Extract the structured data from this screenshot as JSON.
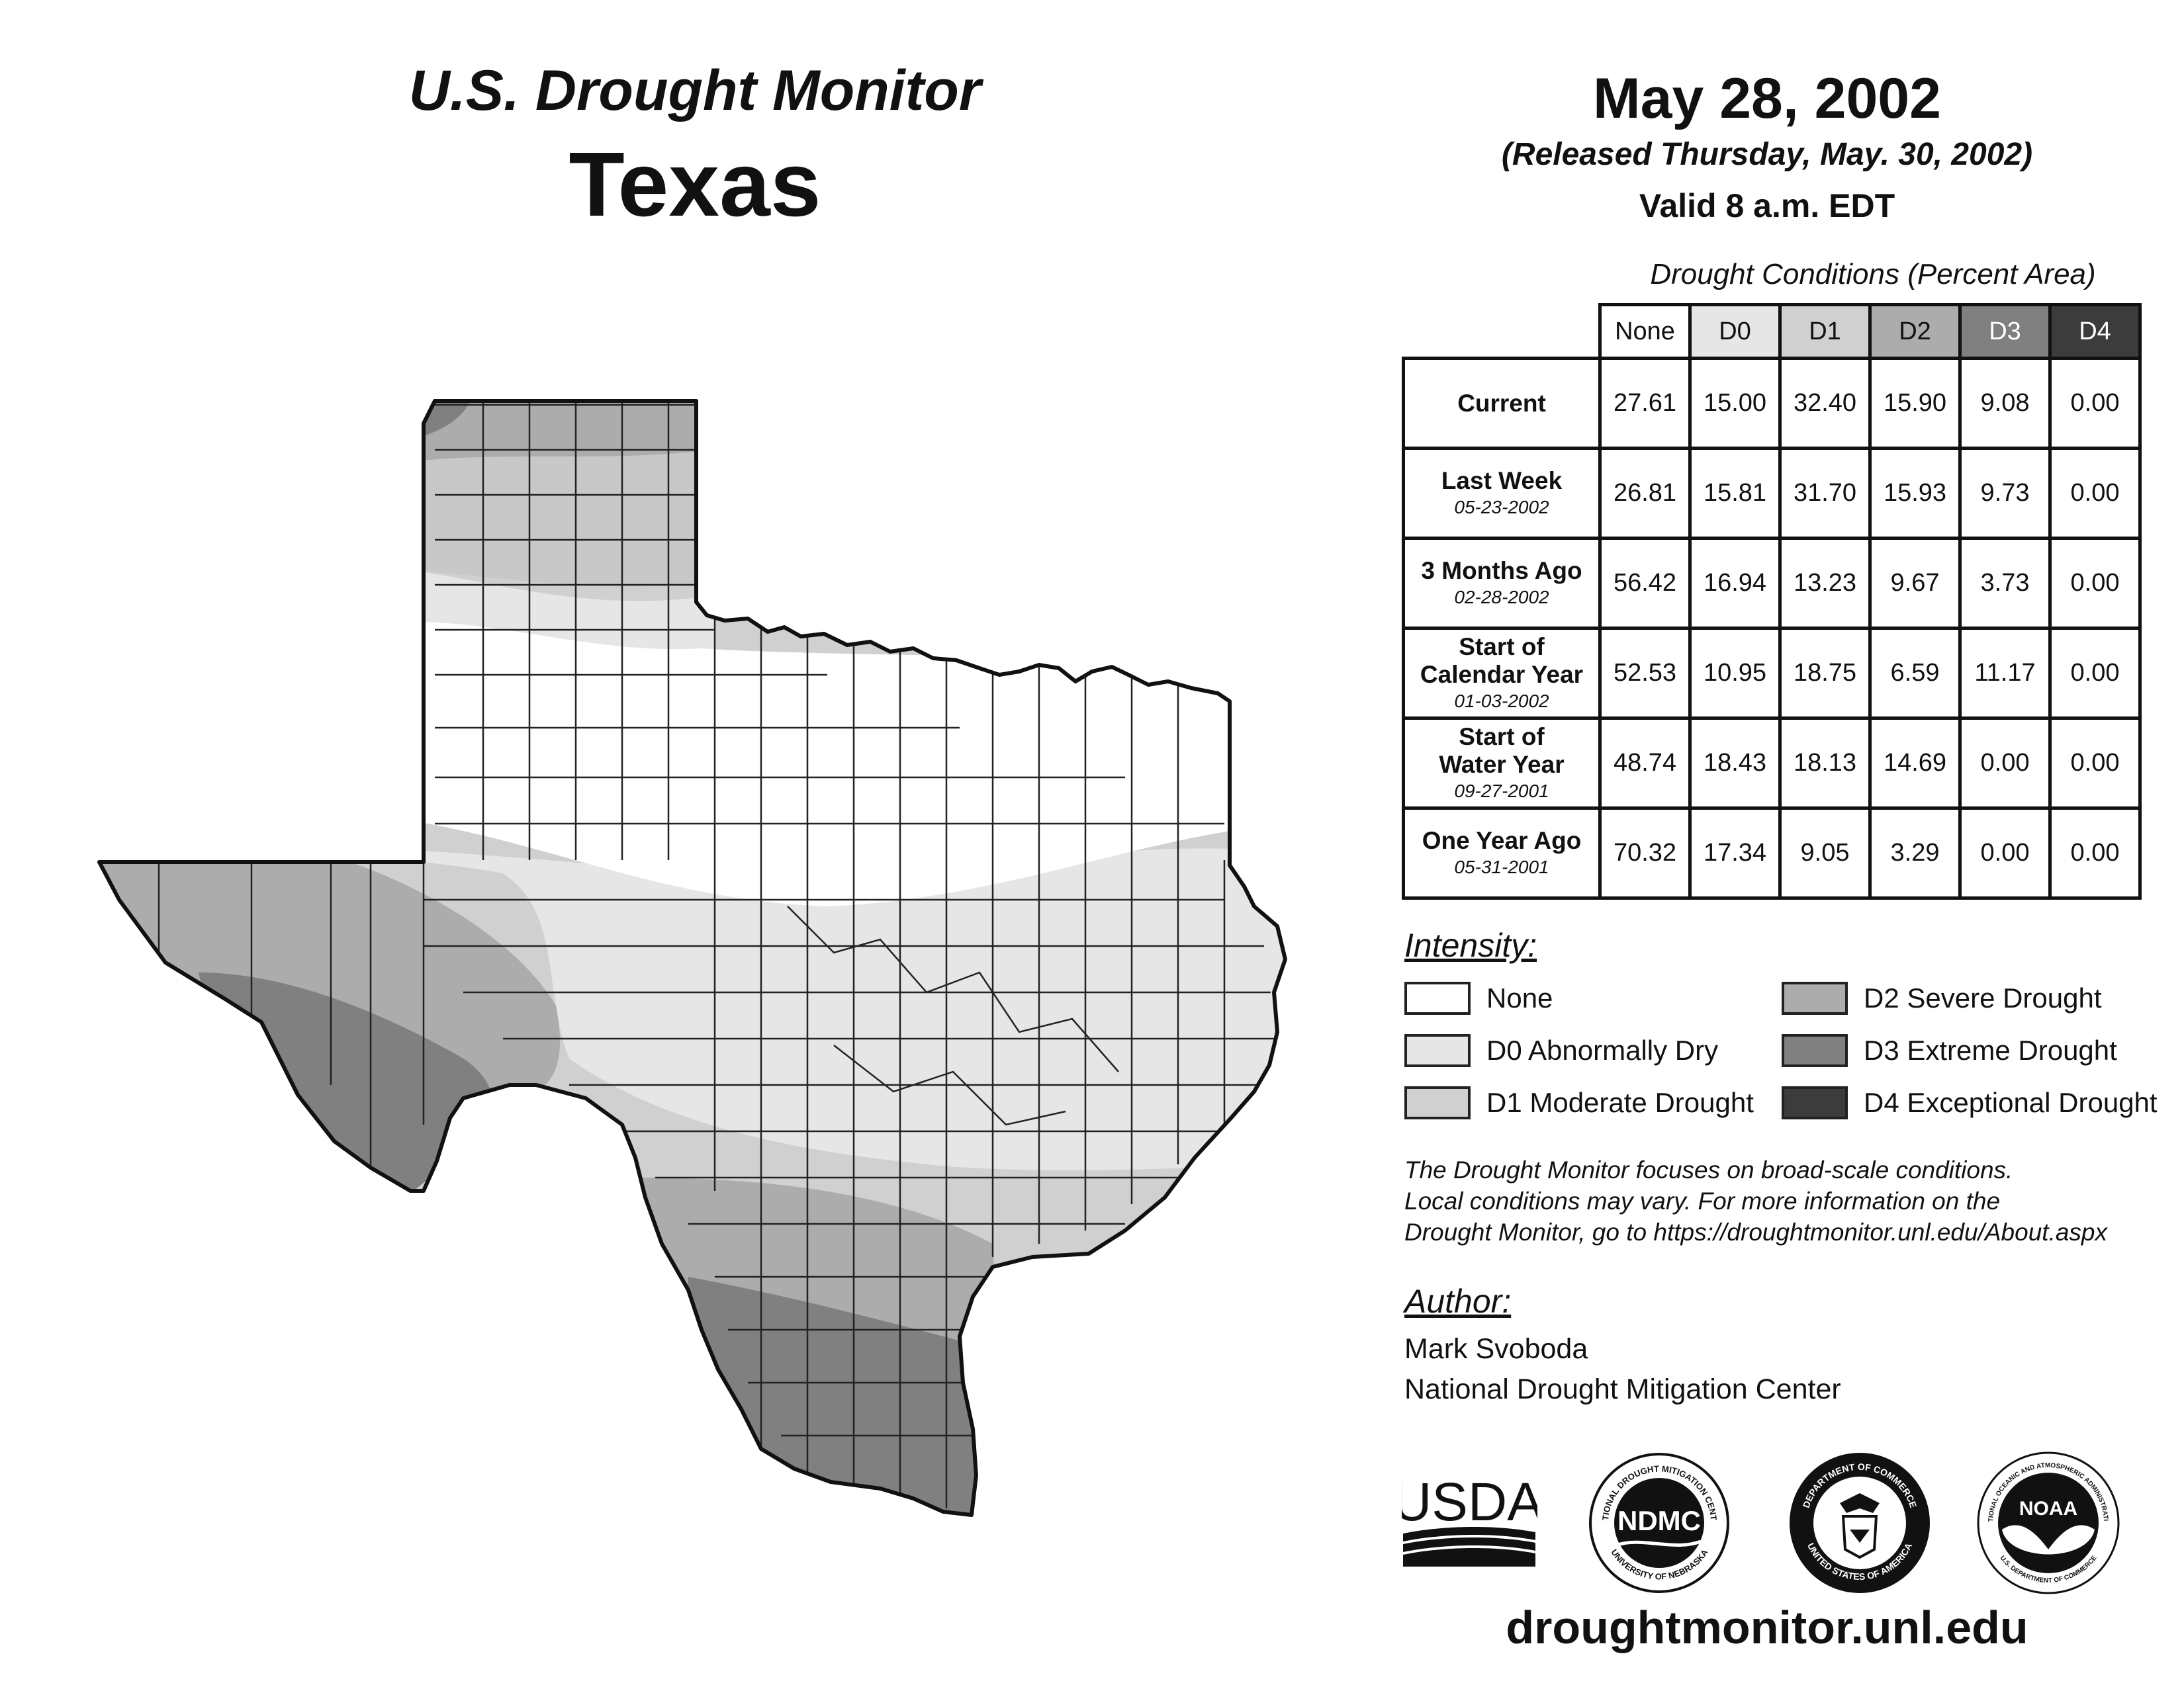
{
  "header": {
    "title": "U.S. Drought Monitor",
    "state": "Texas",
    "date": "May 28, 2002",
    "released": "(Released Thursday, May. 30, 2002)",
    "valid": "Valid 8 a.m. EDT"
  },
  "table": {
    "caption": "Drought Conditions (Percent Area)",
    "columns": [
      "None",
      "D0",
      "D1",
      "D2",
      "D3",
      "D4"
    ],
    "rows": [
      {
        "label": "Current",
        "date": "",
        "values": [
          "27.61",
          "15.00",
          "32.40",
          "15.90",
          "9.08",
          "0.00"
        ]
      },
      {
        "label": "Last Week",
        "date": "05-23-2002",
        "values": [
          "26.81",
          "15.81",
          "31.70",
          "15.93",
          "9.73",
          "0.00"
        ]
      },
      {
        "label": "3 Months Ago",
        "date": "02-28-2002",
        "values": [
          "56.42",
          "16.94",
          "13.23",
          "9.67",
          "3.73",
          "0.00"
        ]
      },
      {
        "label": "Start of Calendar Year",
        "date": "01-03-2002",
        "values": [
          "52.53",
          "10.95",
          "18.75",
          "6.59",
          "11.17",
          "0.00"
        ]
      },
      {
        "label": "Start of Water Year",
        "date": "09-27-2001",
        "values": [
          "48.74",
          "18.43",
          "18.13",
          "14.69",
          "0.00",
          "0.00"
        ]
      },
      {
        "label": "One Year Ago",
        "date": "05-31-2001",
        "values": [
          "70.32",
          "17.34",
          "9.05",
          "3.29",
          "0.00",
          "0.00"
        ]
      }
    ]
  },
  "legend": {
    "title": "Intensity:",
    "items": [
      {
        "label": "None",
        "color": "#ffffff"
      },
      {
        "label": "D0 Abnormally Dry",
        "color": "#e6e6e6"
      },
      {
        "label": "D1 Moderate Drought",
        "color": "#d0d0d0"
      },
      {
        "label": "D2 Severe Drought",
        "color": "#acacac"
      },
      {
        "label": "D3 Extreme Drought",
        "color": "#808080"
      },
      {
        "label": "D4 Exceptional Drought",
        "color": "#3c3c3c"
      }
    ]
  },
  "note": {
    "line1": "The Drought Monitor focuses on broad-scale conditions.",
    "line2": "Local conditions may vary. For more information on the",
    "line3": "Drought Monitor, go to https://droughtmonitor.unl.edu/About.aspx"
  },
  "author": {
    "title": "Author:",
    "name": "Mark Svoboda",
    "org": "National Drought Mitigation Center"
  },
  "logos": {
    "usda": "USDA",
    "ndmc": "NDMC",
    "ndmc_ring_top": "NATIONAL DROUGHT MITIGATION CENTER",
    "ndmc_ring_bottom": "UNIVERSITY OF NEBRASKA",
    "commerce_ring_top": "DEPARTMENT OF COMMERCE",
    "commerce_ring_bottom": "UNITED STATES OF AMERICA",
    "noaa": "NOAA",
    "noaa_ring_top": "NATIONAL OCEANIC AND ATMOSPHERIC ADMINISTRATION",
    "noaa_ring_bottom": "U.S. DEPARTMENT OF COMMERCE"
  },
  "website": "droughtmonitor.unl.edu"
}
